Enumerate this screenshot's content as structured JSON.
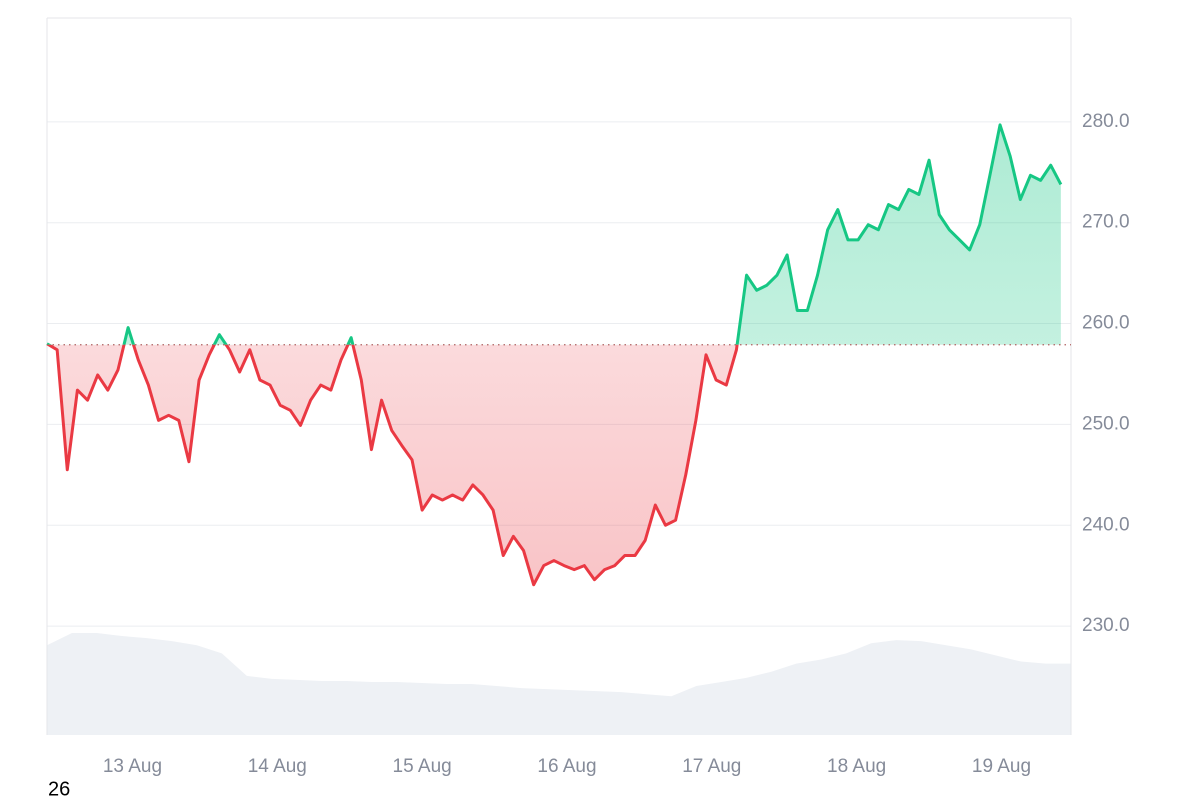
{
  "chart_data": {
    "type": "line",
    "x": [
      12.41,
      12.48,
      12.55,
      12.62,
      12.69,
      12.76,
      12.83,
      12.9,
      12.97,
      13.04,
      13.11,
      13.18,
      13.25,
      13.32,
      13.39,
      13.46,
      13.53,
      13.6,
      13.67,
      13.74,
      13.81,
      13.88,
      13.95,
      14.02,
      14.09,
      14.16,
      14.23,
      14.3,
      14.37,
      14.44,
      14.51,
      14.58,
      14.65,
      14.72,
      14.79,
      14.86,
      14.93,
      15.0,
      15.07,
      15.14,
      15.21,
      15.28,
      15.35,
      15.42,
      15.49,
      15.56,
      15.63,
      15.7,
      15.77,
      15.84,
      15.91,
      15.98,
      16.05,
      16.12,
      16.19,
      16.26,
      16.33,
      16.4,
      16.47,
      16.54,
      16.61,
      16.68,
      16.75,
      16.82,
      16.89,
      16.96,
      17.03,
      17.1,
      17.17,
      17.24,
      17.31,
      17.38,
      17.45,
      17.52,
      17.59,
      17.66,
      17.73,
      17.8,
      17.87,
      17.94,
      18.01,
      18.08,
      18.15,
      18.22,
      18.29,
      18.36,
      18.43,
      18.5,
      18.57,
      18.64,
      18.71,
      18.78,
      18.85,
      18.92,
      18.99,
      19.06,
      19.13,
      19.2,
      19.27,
      19.34,
      19.41
    ],
    "values": [
      258,
      257.4,
      245.5,
      253.4,
      252.4,
      254.9,
      253.4,
      255.4,
      259.6,
      256.4,
      253.9,
      250.4,
      250.9,
      250.4,
      246.3,
      254.4,
      256.9,
      258.9,
      257.4,
      255.2,
      257.4,
      254.4,
      253.9,
      251.9,
      251.4,
      249.9,
      252.4,
      253.9,
      253.4,
      256.4,
      258.6,
      254.4,
      247.5,
      252.4,
      249.4,
      247.9,
      246.5,
      241.5,
      243.0,
      242.5,
      243.0,
      242.5,
      244.0,
      243.0,
      241.5,
      237.0,
      238.9,
      237.5,
      234.1,
      236.0,
      236.5,
      236.0,
      235.6,
      236.0,
      234.6,
      235.6,
      236.0,
      237.0,
      237.0,
      238.5,
      242.0,
      240.0,
      240.5,
      245.0,
      250.4,
      256.9,
      254.4,
      253.9,
      257.4,
      264.8,
      263.3,
      263.8,
      264.8,
      266.8,
      261.3,
      261.3,
      264.8,
      269.3,
      271.3,
      268.3,
      268.3,
      269.8,
      269.3,
      271.8,
      271.3,
      273.3,
      272.8,
      276.2,
      270.8,
      269.3,
      268.3,
      267.3,
      269.8,
      274.7,
      279.7,
      276.6,
      272.3,
      274.7,
      274.2,
      275.7,
      273.8
    ],
    "baseline": 257.9,
    "up_color": "#16c784",
    "down_color": "#ea3943",
    "volume": {
      "color": "#eef1f5",
      "values": [
        88,
        100,
        100,
        97,
        95,
        92,
        88,
        80,
        58,
        55,
        54,
        53,
        53,
        52,
        52,
        51,
        50,
        50,
        48,
        46,
        45,
        44,
        43,
        42,
        40,
        38,
        48,
        52,
        56,
        62,
        70,
        74,
        80,
        90,
        93,
        92,
        88,
        84,
        78,
        72,
        70,
        70
      ]
    },
    "xlim": [
      12.41,
      19.48
    ],
    "xticks": [
      {
        "value": 13,
        "label": "13 Aug"
      },
      {
        "value": 14,
        "label": "14 Aug"
      },
      {
        "value": 15,
        "label": "15 Aug"
      },
      {
        "value": 16,
        "label": "16 Aug"
      },
      {
        "value": 17,
        "label": "17 Aug"
      },
      {
        "value": 18,
        "label": "18 Aug"
      },
      {
        "value": 19,
        "label": "19 Aug"
      }
    ],
    "ylim": [
      219.2,
      290.3
    ],
    "yticks": [
      {
        "value": 230,
        "label": "230.0"
      },
      {
        "value": 240,
        "label": "240.0"
      },
      {
        "value": 250,
        "label": "250.0"
      },
      {
        "value": 260,
        "label": "260.0"
      },
      {
        "value": 270,
        "label": "270.0"
      },
      {
        "value": 280,
        "label": "280.0"
      }
    ],
    "grid": true,
    "note": "26"
  }
}
